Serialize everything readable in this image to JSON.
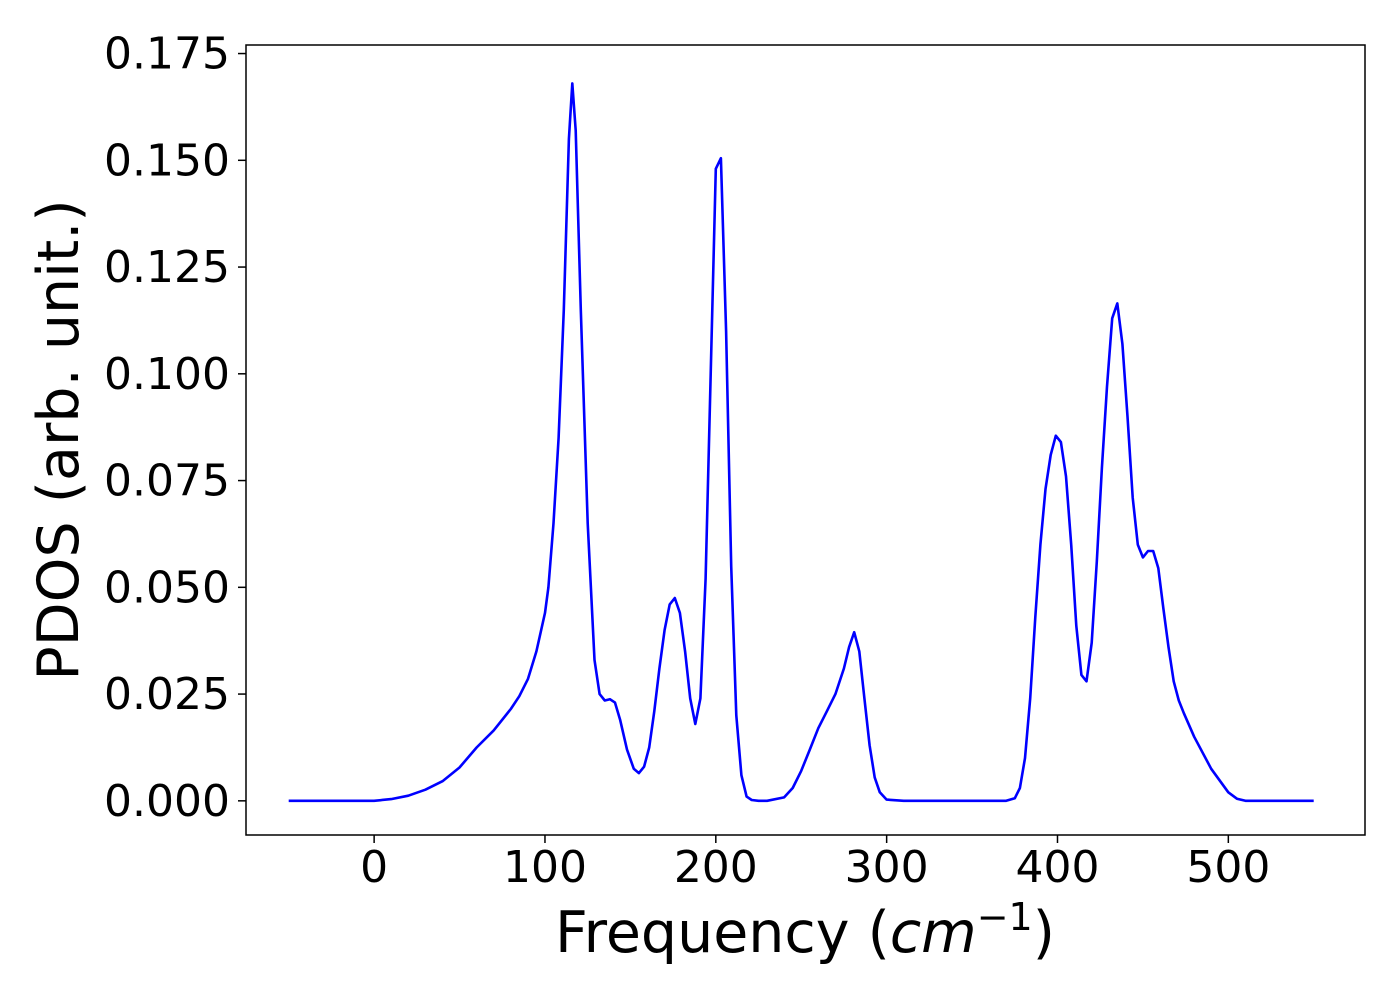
{
  "chart_data": {
    "type": "line",
    "title": "",
    "xlabel": {
      "text": "Frequency (",
      "unit_base": "cm",
      "unit_exp": "−1",
      "suffix": ")"
    },
    "ylabel": "PDOS (arb. unit.)",
    "xlim": [
      -75,
      580
    ],
    "ylim": [
      -0.008,
      0.177
    ],
    "xticks": [
      0,
      100,
      200,
      300,
      400,
      500
    ],
    "xtick_labels": [
      "0",
      "100",
      "200",
      "300",
      "400",
      "500"
    ],
    "yticks": [
      0,
      0.025,
      0.05,
      0.075,
      0.1,
      0.125,
      0.15,
      0.175
    ],
    "ytick_labels": [
      "0.000",
      "0.025",
      "0.050",
      "0.075",
      "0.100",
      "0.125",
      "0.150",
      "0.175"
    ],
    "grid": false,
    "legend": "none",
    "series": [
      {
        "color": "#0000ff",
        "x": [
          -50,
          0,
          10,
          20,
          30,
          40,
          50,
          60,
          70,
          80,
          85,
          90,
          95,
          100,
          102,
          105,
          108,
          111,
          114,
          116,
          118,
          121,
          125,
          129,
          132,
          135,
          138,
          141,
          144,
          148,
          152,
          155,
          158,
          161,
          164,
          167,
          170,
          173,
          176,
          179,
          182,
          185,
          188,
          191,
          194,
          197,
          200,
          203,
          206,
          209,
          212,
          215,
          218,
          221,
          225,
          230,
          240,
          245,
          250,
          255,
          260,
          265,
          270,
          275,
          278,
          281,
          284,
          287,
          290,
          293,
          296,
          300,
          310,
          330,
          350,
          370,
          375,
          378,
          381,
          384,
          387,
          390,
          393,
          396,
          399,
          402,
          405,
          408,
          411,
          414,
          417,
          420,
          423,
          426,
          429,
          432,
          435,
          438,
          441,
          444,
          447,
          450,
          453,
          456,
          459,
          462,
          465,
          468,
          471,
          474,
          480,
          490,
          500,
          505,
          510,
          520,
          540,
          550
        ],
        "y": [
          0,
          0,
          0.0004,
          0.0012,
          0.0026,
          0.0046,
          0.0078,
          0.0125,
          0.0165,
          0.0215,
          0.0245,
          0.0285,
          0.035,
          0.044,
          0.05,
          0.065,
          0.085,
          0.115,
          0.155,
          0.168,
          0.157,
          0.115,
          0.065,
          0.033,
          0.025,
          0.0235,
          0.0238,
          0.023,
          0.019,
          0.012,
          0.0075,
          0.0065,
          0.008,
          0.0125,
          0.021,
          0.031,
          0.04,
          0.046,
          0.0475,
          0.044,
          0.035,
          0.024,
          0.018,
          0.024,
          0.052,
          0.1,
          0.148,
          0.1505,
          0.11,
          0.055,
          0.02,
          0.006,
          0.001,
          0.0002,
          0,
          0,
          0.0008,
          0.003,
          0.007,
          0.012,
          0.017,
          0.021,
          0.025,
          0.031,
          0.036,
          0.0395,
          0.035,
          0.024,
          0.013,
          0.0055,
          0.002,
          0.0003,
          0,
          0,
          0,
          0,
          0.0006,
          0.003,
          0.01,
          0.024,
          0.043,
          0.06,
          0.073,
          0.081,
          0.0855,
          0.084,
          0.076,
          0.06,
          0.041,
          0.0295,
          0.028,
          0.037,
          0.056,
          0.078,
          0.097,
          0.113,
          0.1165,
          0.107,
          0.09,
          0.071,
          0.06,
          0.057,
          0.0585,
          0.0585,
          0.0545,
          0.045,
          0.036,
          0.028,
          0.0235,
          0.0205,
          0.015,
          0.0075,
          0.002,
          0.0005,
          0,
          0,
          0,
          0
        ]
      }
    ]
  }
}
